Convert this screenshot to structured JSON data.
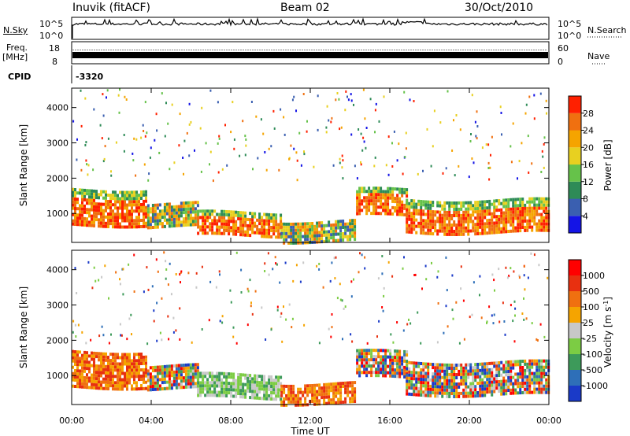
{
  "header": {
    "station": "Inuvik (fitACF)",
    "beam": "Beam 02",
    "date": "30/Oct/2010"
  },
  "meta_panel": {
    "nsky_label": "N.Sky",
    "nsky_ticks": [
      "10^5",
      "10^0"
    ],
    "nsearch_label": "N.Search",
    "nsearch_ticks": [
      "10^5",
      "10^0"
    ],
    "freq_label": "Freq.",
    "freq_unit": "[MHz]",
    "freq_ticks": [
      "18",
      "8"
    ],
    "nave_label": "Nave",
    "nave_ticks": [
      "60",
      "0"
    ],
    "cpid_label": "CPID",
    "cpid_value": "-3320"
  },
  "chart_data": [
    {
      "type": "heatmap",
      "name": "power",
      "ylabel": "Slant Range [km]",
      "yticks": [
        1000,
        2000,
        3000,
        4000
      ],
      "ylim": [
        180,
        4550
      ],
      "x_range_hours": [
        0,
        24
      ],
      "colorbar": {
        "label": "Power [dB]",
        "ticks": [
          "28",
          "24",
          "20",
          "16",
          "12",
          "8",
          "4"
        ],
        "colors": [
          "#1414e6",
          "#3a5fb0",
          "#2e8b57",
          "#66c24a",
          "#e8d020",
          "#f5a400",
          "#f07010",
          "#ff2000"
        ]
      },
      "bands": [
        {
          "t0": 0.0,
          "t1": 3.8,
          "r0": 700,
          "r1": 1700,
          "level": "high"
        },
        {
          "t0": 3.8,
          "t1": 6.3,
          "r0": 600,
          "r1": 1300,
          "level": "mid"
        },
        {
          "t0": 6.3,
          "t1": 10.5,
          "r0": 350,
          "r1": 1050,
          "level": "high"
        },
        {
          "t0": 10.5,
          "t1": 14.3,
          "r0": 250,
          "r1": 800,
          "level": "mid"
        },
        {
          "t0": 14.3,
          "t1": 16.8,
          "r0": 900,
          "r1": 1700,
          "level": "high"
        },
        {
          "t0": 16.8,
          "t1": 24.0,
          "r0": 500,
          "r1": 1400,
          "level": "high"
        }
      ]
    },
    {
      "type": "heatmap",
      "name": "velocity",
      "ylabel": "Slant Range [km]",
      "xlabel": "Time UT",
      "yticks": [
        1000,
        2000,
        3000,
        4000
      ],
      "ylim": [
        180,
        4550
      ],
      "x_range_hours": [
        0,
        24
      ],
      "xticks": [
        "00:00",
        "04:00",
        "08:00",
        "12:00",
        "16:00",
        "20:00",
        "00:00"
      ],
      "colorbar": {
        "label": "Velocity [m s",
        "label_sup": "-1",
        "label_end": "]",
        "ticks": [
          "1000",
          "500",
          "100",
          "25",
          "-25",
          "-100",
          "-500",
          "-1000"
        ],
        "colors": [
          "#1a3ac8",
          "#2e6fb8",
          "#3d9a5a",
          "#7ccc44",
          "#c8c8c8",
          "#f5a400",
          "#f07010",
          "#e83010",
          "#ff0000"
        ]
      },
      "bands": [
        {
          "t0": 0.0,
          "t1": 3.8,
          "r0": 700,
          "r1": 1700,
          "level": "neg"
        },
        {
          "t0": 3.8,
          "t1": 6.3,
          "r0": 600,
          "r1": 1300,
          "level": "mix"
        },
        {
          "t0": 6.3,
          "t1": 10.5,
          "r0": 350,
          "r1": 1050,
          "level": "pos"
        },
        {
          "t0": 10.5,
          "t1": 14.3,
          "r0": 250,
          "r1": 800,
          "level": "neg"
        },
        {
          "t0": 14.3,
          "t1": 16.8,
          "r0": 900,
          "r1": 1700,
          "level": "mix"
        },
        {
          "t0": 16.8,
          "t1": 24.0,
          "r0": 500,
          "r1": 1400,
          "level": "mix"
        }
      ]
    }
  ]
}
